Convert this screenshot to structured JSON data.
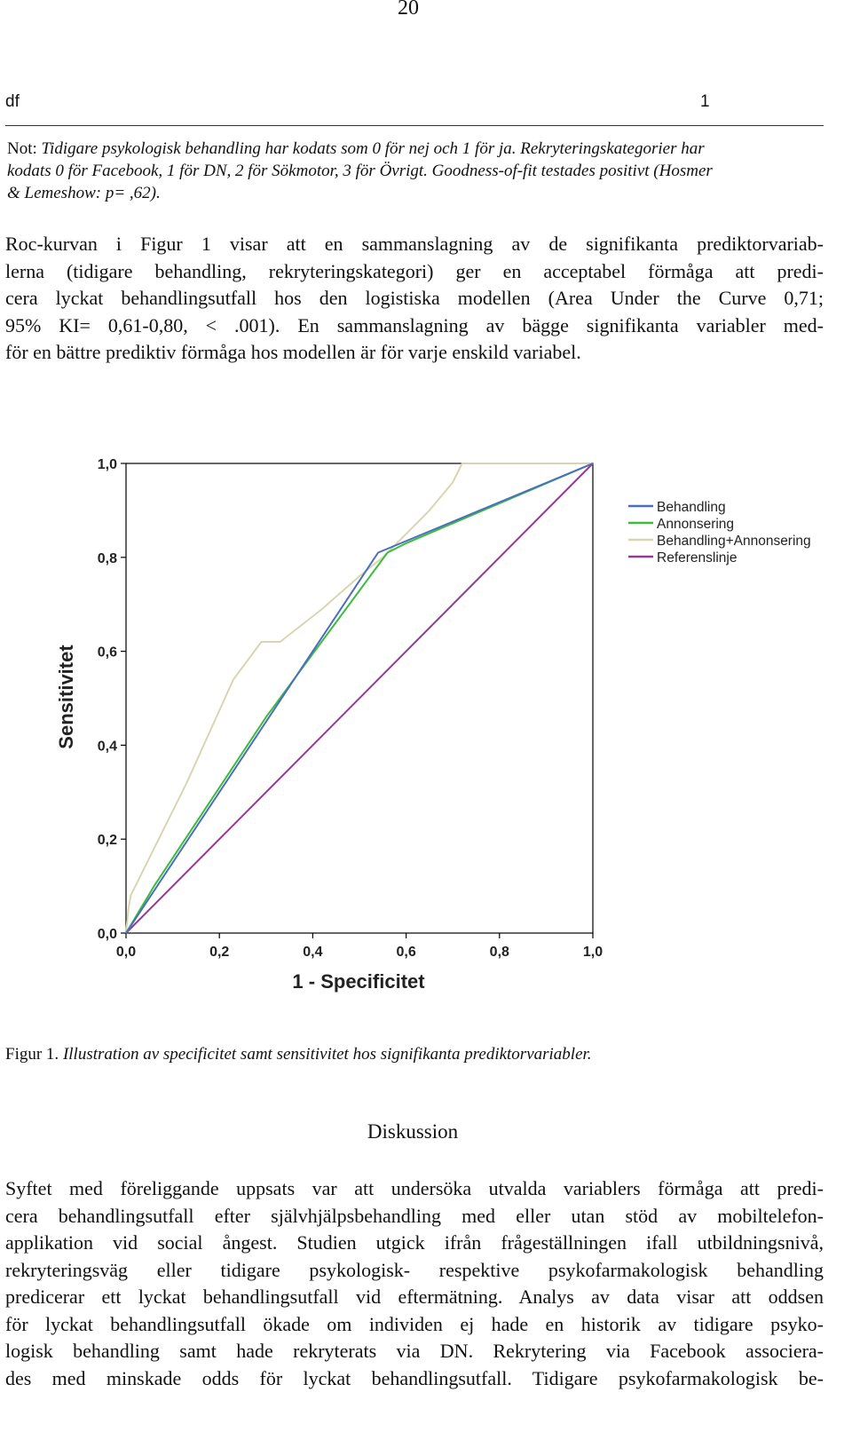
{
  "header": {
    "page_number": "20"
  },
  "table_end": {
    "col_df": "df",
    "col_value": "1"
  },
  "note": {
    "label": "Not: ",
    "lines": [
      "Tidigare psykologisk behandling har kodats som 0 för nej och 1 för ja. Rekryteringskategorier har",
      "kodats 0 för Facebook, 1 för DN, 2 för Sökmotor, 3 för Övrigt. Goodness-of-fit testades positivt (Hosmer",
      "& Lemeshow: p= ,62)."
    ]
  },
  "paragraph1": {
    "lines": [
      "Roc-kurvan i Figur 1 visar att en sammanslagning av de signifikanta prediktorvariab-",
      "lerna (tidigare behandling, rekryteringskategori) ger en acceptabel förmåga att predi-",
      "cera lyckat behandlingsutfall hos den logistiska modellen (Area Under the Curve 0,71;",
      "95% KI= 0,61-0,80, < .001). En sammanslagning av bägge signifikanta variabler med-",
      "för en bättre prediktiv förmåga hos modellen är för varje enskild variabel."
    ]
  },
  "chart_data": {
    "type": "line",
    "xlabel": "1 - Specificitet",
    "ylabel": "Sensitivitet",
    "xlim": [
      0,
      1
    ],
    "ylim": [
      0,
      1
    ],
    "x_ticks": [
      "0,0",
      "0,2",
      "0,4",
      "0,6",
      "0,8",
      "1,0"
    ],
    "y_ticks": [
      "0,0",
      "0,2",
      "0,4",
      "0,6",
      "0,8",
      "1,0"
    ],
    "legend_position": "top-right",
    "series": [
      {
        "name": "Behandling",
        "color": "#4a6fbf",
        "points": [
          [
            0,
            0
          ],
          [
            0.54,
            0.81
          ],
          [
            1,
            1
          ]
        ]
      },
      {
        "name": "Annonsering",
        "color": "#3dbb3d",
        "points": [
          [
            0,
            0
          ],
          [
            0.06,
            0.1
          ],
          [
            0.3,
            0.46
          ],
          [
            0.56,
            0.81
          ],
          [
            0.6,
            0.83
          ],
          [
            1,
            1
          ]
        ]
      },
      {
        "name": "Behandling+Annonsering",
        "color": "#d8d6b0",
        "points": [
          [
            0,
            0
          ],
          [
            0.005,
            0.05
          ],
          [
            0.01,
            0.08
          ],
          [
            0.08,
            0.22
          ],
          [
            0.13,
            0.32
          ],
          [
            0.23,
            0.54
          ],
          [
            0.29,
            0.62
          ],
          [
            0.33,
            0.62
          ],
          [
            0.42,
            0.69
          ],
          [
            0.5,
            0.76
          ],
          [
            0.55,
            0.8
          ],
          [
            0.6,
            0.85
          ],
          [
            0.65,
            0.9
          ],
          [
            0.7,
            0.96
          ],
          [
            0.72,
            1
          ],
          [
            1,
            1
          ]
        ]
      },
      {
        "name": "Referenslinje",
        "color": "#943a94",
        "points": [
          [
            0,
            0
          ],
          [
            1,
            1
          ]
        ]
      }
    ]
  },
  "caption": {
    "label": "Figur 1. ",
    "text": "Illustration av specificitet samt sensitivitet hos signifikanta prediktorvariabler."
  },
  "section": {
    "heading": "Diskussion"
  },
  "paragraph2": {
    "lines": [
      "Syftet med föreliggande uppsats var att undersöka utvalda variablers förmåga att predi-",
      "cera behandlingsutfall efter självhjälpsbehandling med eller utan stöd av mobiltelefon-",
      "applikation vid social ångest. Studien utgick ifrån frågeställningen ifall utbildningsnivå,",
      "rekryteringsväg eller tidigare psykologisk- respektive psykofarmakologisk behandling",
      "predicerar ett lyckat behandlingsutfall vid eftermätning. Analys av data visar att oddsen",
      "för lyckat behandlingsutfall ökade om individen ej hade en historik av tidigare psyko-",
      "logisk behandling samt hade rekryterats via DN. Rekrytering via Facebook associera-",
      "des med minskade odds för lyckat behandlingsutfall. Tidigare psykofarmakologisk be-"
    ]
  }
}
